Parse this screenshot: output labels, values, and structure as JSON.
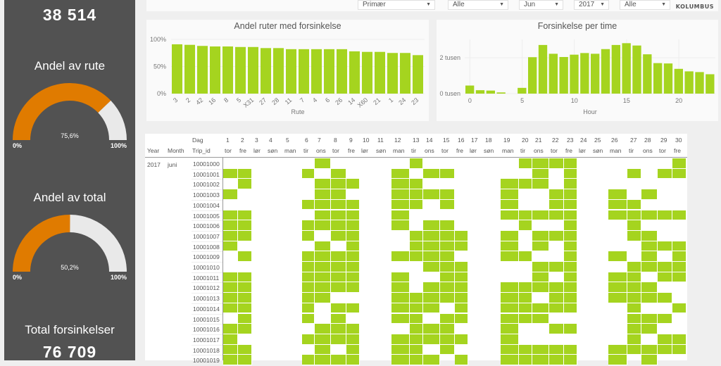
{
  "left": {
    "kpi_top": "38 514",
    "gauge1": {
      "title": "Andel av rute",
      "value": 75.6,
      "label": "75,6%",
      "min": "0%",
      "max": "100%"
    },
    "gauge2": {
      "title": "Andel av total",
      "value": 50.2,
      "label": "50,2%",
      "min": "0%",
      "max": "100%"
    },
    "kpi_bottom_title": "Total forsinkelser",
    "kpi_bottom": "76 709"
  },
  "filters": [
    {
      "value": "Primær"
    },
    {
      "value": "Alle"
    },
    {
      "value": "Jun"
    },
    {
      "value": "2017"
    },
    {
      "value": "Alle"
    }
  ],
  "brand": "KOLUMBUS",
  "colors": {
    "accent": "#a5d41f",
    "gauge_fill": "#e07b00",
    "gauge_bg": "#e9e9e9",
    "panel": "#525252"
  },
  "chart_data": [
    {
      "type": "bar",
      "title": "Andel ruter med forsinkelse",
      "xlabel": "Rute",
      "ylabel": "",
      "ylim": [
        0,
        100
      ],
      "yticks": [
        "0%",
        "50%",
        "100%"
      ],
      "categories": [
        "3",
        "2",
        "42",
        "16",
        "8",
        "5",
        "X31",
        "27",
        "28",
        "11",
        "7",
        "4",
        "6",
        "26",
        "14",
        "X60",
        "21",
        "1",
        "24",
        "23"
      ],
      "values": [
        91,
        90,
        88,
        87,
        87,
        86,
        86,
        84,
        84,
        82,
        82,
        82,
        82,
        82,
        78,
        77,
        77,
        75,
        75,
        71
      ]
    },
    {
      "type": "bar",
      "title": "Forsinkelse per time",
      "xlabel": "Hour",
      "ylabel": "",
      "ylim": [
        0,
        3000
      ],
      "yticks": [
        "0 tusen",
        "2 tusen"
      ],
      "xticks": [
        0,
        5,
        10,
        15,
        20
      ],
      "categories": [
        0,
        1,
        2,
        3,
        4,
        5,
        6,
        7,
        8,
        9,
        10,
        11,
        12,
        13,
        14,
        15,
        16,
        17,
        18,
        19,
        20,
        21,
        22,
        23
      ],
      "values": [
        450,
        190,
        170,
        65,
        0,
        320,
        2030,
        2710,
        2220,
        2040,
        2170,
        2260,
        2220,
        2480,
        2710,
        2810,
        2680,
        2190,
        1700,
        1680,
        1380,
        1240,
        1200,
        1080
      ]
    }
  ],
  "matrix": {
    "headers": {
      "year": "Year",
      "month": "Month",
      "dag": "Dag",
      "trip": "Trip_id"
    },
    "year": "2017",
    "month": "juni",
    "days": [
      "1",
      "2",
      "3",
      "4",
      "5",
      "6",
      "7",
      "8",
      "9",
      "10",
      "11",
      "12",
      "13",
      "14",
      "15",
      "16",
      "17",
      "18",
      "19",
      "20",
      "21",
      "22",
      "23",
      "24",
      "25",
      "26",
      "27",
      "28",
      "29",
      "30"
    ],
    "weekdays": [
      "tor",
      "fre",
      "lør",
      "søn",
      "man",
      "tir",
      "ons",
      "tor",
      "fre",
      "lør",
      "søn",
      "man",
      "tir",
      "ons",
      "tor",
      "fre",
      "lør",
      "søn",
      "man",
      "tir",
      "ons",
      "tor",
      "fre",
      "lør",
      "søn",
      "man",
      "tir",
      "ons",
      "tor",
      "fre"
    ],
    "rows": [
      {
        "trip": "10001000",
        "delayed": [
          7,
          13,
          20,
          21,
          22,
          23,
          30
        ]
      },
      {
        "trip": "10001001",
        "delayed": [
          1,
          2,
          6,
          8,
          12,
          14,
          15,
          21,
          23,
          27,
          29,
          30
        ]
      },
      {
        "trip": "10001002",
        "delayed": [
          2,
          7,
          8,
          9,
          12,
          13,
          19,
          20,
          21,
          23
        ]
      },
      {
        "trip": "10001003",
        "delayed": [
          1,
          7,
          8,
          12,
          13,
          14,
          15,
          19,
          22,
          23,
          26,
          28
        ]
      },
      {
        "trip": "10001004",
        "delayed": [
          6,
          7,
          8,
          9,
          12,
          13,
          15,
          19,
          22,
          23,
          26,
          27
        ]
      },
      {
        "trip": "10001005",
        "delayed": [
          1,
          2,
          7,
          8,
          9,
          12,
          19,
          20,
          21,
          22,
          23,
          26,
          27,
          28,
          29,
          30
        ]
      },
      {
        "trip": "10001006",
        "delayed": [
          1,
          2,
          6,
          7,
          8,
          9,
          12,
          14,
          15,
          20,
          23,
          27
        ]
      },
      {
        "trip": "10001007",
        "delayed": [
          1,
          2,
          6,
          8,
          9,
          13,
          14,
          15,
          16,
          19,
          21,
          22,
          23,
          27,
          28
        ]
      },
      {
        "trip": "10001008",
        "delayed": [
          1,
          7,
          9,
          13,
          14,
          15,
          16,
          19,
          21,
          23,
          28,
          29,
          30
        ]
      },
      {
        "trip": "10001009",
        "delayed": [
          2,
          6,
          7,
          8,
          9,
          12,
          13,
          14,
          15,
          19,
          20,
          23,
          26,
          28,
          30
        ]
      },
      {
        "trip": "10001010",
        "delayed": [
          6,
          7,
          8,
          9,
          14,
          15,
          16,
          21,
          22,
          23,
          27,
          28,
          29,
          30
        ]
      },
      {
        "trip": "10001011",
        "delayed": [
          1,
          2,
          6,
          7,
          8,
          9,
          12,
          15,
          16,
          21,
          23,
          26,
          27,
          29,
          30
        ]
      },
      {
        "trip": "10001012",
        "delayed": [
          1,
          2,
          6,
          7,
          8,
          9,
          12,
          14,
          15,
          16,
          19,
          20,
          21,
          22,
          23,
          26,
          27,
          28
        ]
      },
      {
        "trip": "10001013",
        "delayed": [
          1,
          2,
          6,
          7,
          12,
          13,
          14,
          15,
          16,
          19,
          20,
          22,
          23,
          26,
          27,
          28,
          29
        ]
      },
      {
        "trip": "10001014",
        "delayed": [
          1,
          2,
          6,
          8,
          9,
          12,
          13,
          14,
          16,
          19,
          20,
          21,
          22,
          23,
          27,
          30
        ]
      },
      {
        "trip": "10001015",
        "delayed": [
          2,
          6,
          8,
          12,
          13,
          15,
          16,
          19,
          20,
          21,
          27,
          28,
          29
        ]
      },
      {
        "trip": "10001016",
        "delayed": [
          1,
          2,
          7,
          8,
          9,
          13,
          14,
          15,
          19,
          22,
          23,
          27,
          28
        ]
      },
      {
        "trip": "10001017",
        "delayed": [
          1,
          6,
          7,
          8,
          9,
          12,
          13,
          14,
          15,
          16,
          19,
          27,
          29,
          30
        ]
      },
      {
        "trip": "10001018",
        "delayed": [
          1,
          2,
          7,
          9,
          12,
          13,
          15,
          19,
          20,
          21,
          22,
          23,
          26,
          27,
          28,
          29,
          30
        ]
      },
      {
        "trip": "10001019",
        "delayed": [
          1,
          2,
          6,
          7,
          8,
          9,
          12,
          13,
          14,
          16,
          19,
          20,
          21,
          22,
          23,
          26,
          28
        ]
      }
    ]
  }
}
